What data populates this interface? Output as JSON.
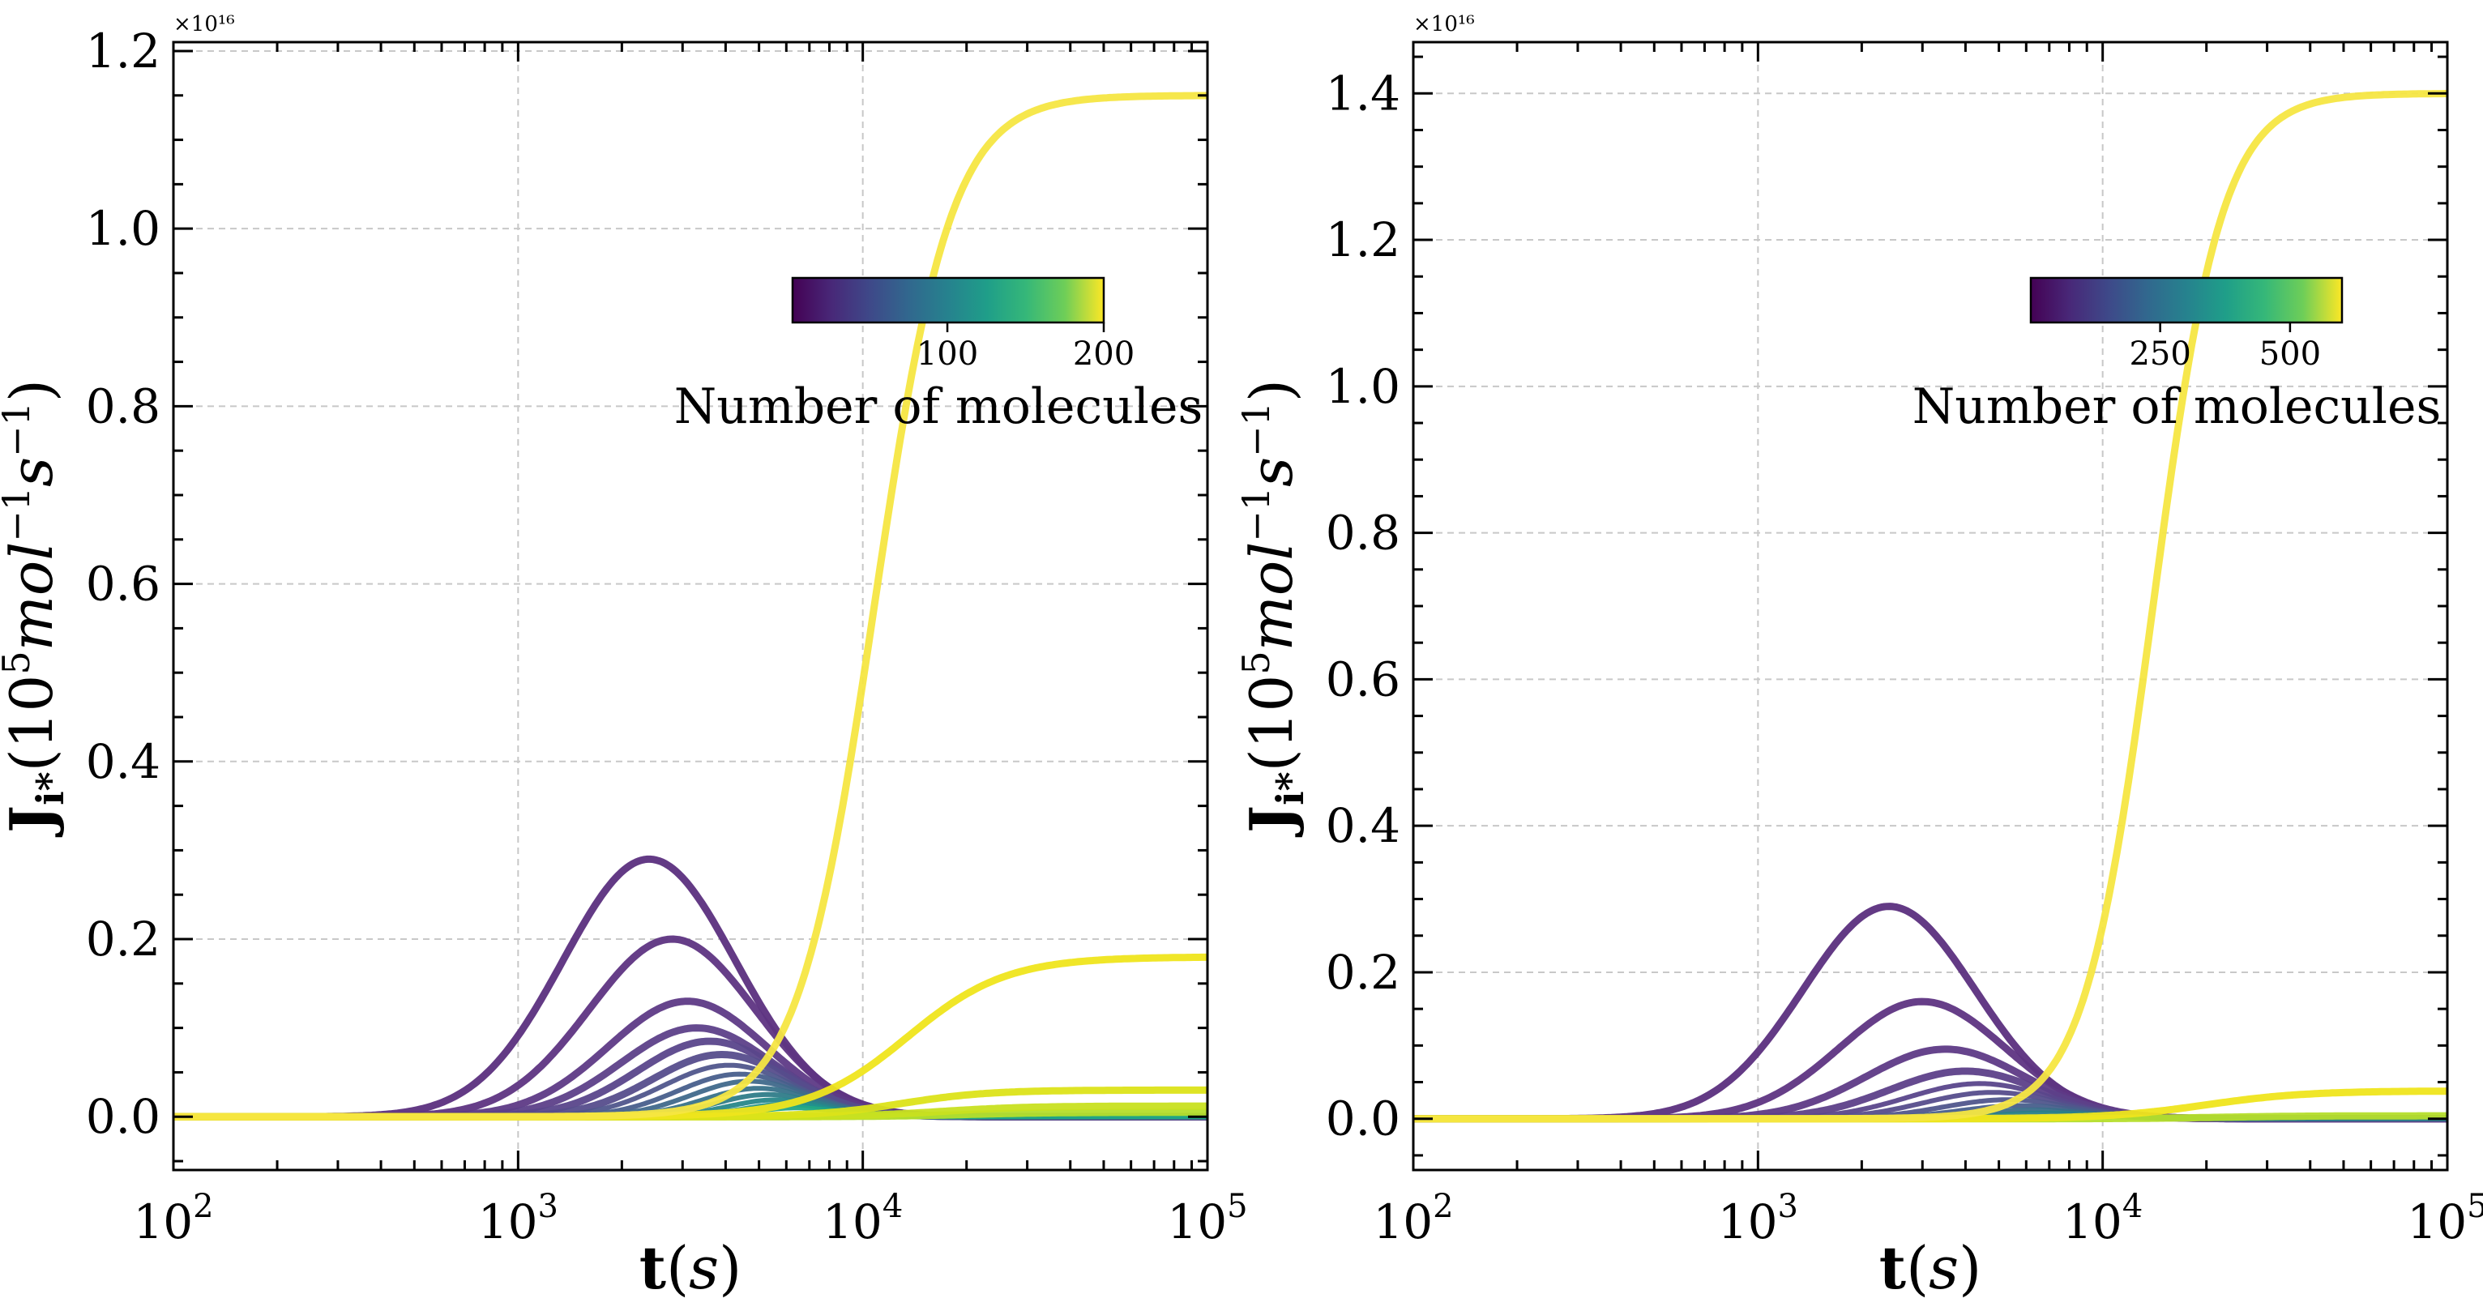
{
  "chart_data": [
    {
      "type": "line",
      "panel": "left",
      "xscale": "log",
      "xlim": [
        100,
        100000
      ],
      "ylim": [
        -0.06,
        1.21
      ],
      "y_scale_multiplier": "×10¹⁶",
      "grid": true,
      "xlabel": "t(s)",
      "ylabel": "J_i*(10^5 mol^-1 s^-1)",
      "x_tick_labels": [
        {
          "value": 100,
          "base": "10",
          "exp": "2"
        },
        {
          "value": 1000,
          "base": "10",
          "exp": "3"
        },
        {
          "value": 10000,
          "base": "10",
          "exp": "4"
        },
        {
          "value": 100000,
          "base": "10",
          "exp": "5"
        }
      ],
      "y_tick_labels": [
        {
          "value": 0.0,
          "label": "0.0"
        },
        {
          "value": 0.2,
          "label": "0.2"
        },
        {
          "value": 0.4,
          "label": "0.4"
        },
        {
          "value": 0.6,
          "label": "0.6"
        },
        {
          "value": 0.8,
          "label": "0.8"
        },
        {
          "value": 1.0,
          "label": "1.0"
        },
        {
          "value": 1.2,
          "label": "1.2"
        }
      ],
      "colorbar": {
        "colormap": "viridis",
        "range": [
          1,
          200
        ],
        "ticks": [
          100,
          200
        ],
        "tick_labels": [
          "100",
          "200"
        ],
        "label": "Number of molecules",
        "placement": "upper-right"
      },
      "series": [
        {
          "kind": "peak",
          "peak_x": 2400,
          "peak_y": 0.29,
          "width": 0.25,
          "color": "#5b2f7e"
        },
        {
          "kind": "peak",
          "peak_x": 2800,
          "peak_y": 0.2,
          "width": 0.24,
          "color": "#5e3482"
        },
        {
          "kind": "peak",
          "peak_x": 3100,
          "peak_y": 0.13,
          "width": 0.23,
          "color": "#5e3a86"
        },
        {
          "kind": "peak",
          "peak_x": 3300,
          "peak_y": 0.1,
          "width": 0.22,
          "color": "#5d4089"
        },
        {
          "kind": "peak",
          "peak_x": 3600,
          "peak_y": 0.085,
          "width": 0.21,
          "color": "#5a468b"
        },
        {
          "kind": "peak",
          "peak_x": 3900,
          "peak_y": 0.07,
          "width": 0.2,
          "color": "#564d8c"
        },
        {
          "kind": "peak",
          "peak_x": 4100,
          "peak_y": 0.058,
          "width": 0.19,
          "color": "#50568c"
        },
        {
          "kind": "peak",
          "peak_x": 4400,
          "peak_y": 0.048,
          "width": 0.18,
          "color": "#485f8c"
        },
        {
          "kind": "peak",
          "peak_x": 4700,
          "peak_y": 0.04,
          "width": 0.17,
          "color": "#40698b"
        },
        {
          "kind": "peak",
          "peak_x": 5000,
          "peak_y": 0.032,
          "width": 0.16,
          "color": "#38728a"
        },
        {
          "kind": "peak",
          "peak_x": 5300,
          "peak_y": 0.025,
          "width": 0.15,
          "color": "#2f7c89"
        },
        {
          "kind": "peak",
          "peak_x": 5600,
          "peak_y": 0.019,
          "width": 0.14,
          "color": "#27878a"
        },
        {
          "kind": "peak",
          "peak_x": 6000,
          "peak_y": 0.014,
          "width": 0.13,
          "color": "#21918c"
        },
        {
          "kind": "peak",
          "peak_x": 6400,
          "peak_y": 0.01,
          "width": 0.12,
          "color": "#21a685"
        },
        {
          "kind": "step",
          "mid_x": 20000,
          "plateau_y": 0.005,
          "steep": 8,
          "color": "#b5de2b"
        },
        {
          "kind": "step",
          "mid_x": 17000,
          "plateau_y": 0.012,
          "steep": 8,
          "color": "#c8e020"
        },
        {
          "kind": "step",
          "mid_x": 13000,
          "plateau_y": 0.03,
          "steep": 8,
          "color": "#dce319"
        },
        {
          "kind": "step",
          "mid_x": 13500,
          "plateau_y": 0.18,
          "steep": 7,
          "color": "#efe51c"
        },
        {
          "kind": "step",
          "mid_x": 10800,
          "plateau_y": 1.15,
          "steep": 9,
          "color": "#f6e642"
        }
      ]
    },
    {
      "type": "line",
      "panel": "right",
      "xscale": "log",
      "xlim": [
        100,
        100000
      ],
      "ylim": [
        -0.07,
        1.47
      ],
      "y_scale_multiplier": "×10¹⁶",
      "grid": true,
      "xlabel": "t(s)",
      "ylabel": "J_i*(10^5 mol^-1 s^-1)",
      "x_tick_labels": [
        {
          "value": 100,
          "base": "10",
          "exp": "2"
        },
        {
          "value": 1000,
          "base": "10",
          "exp": "3"
        },
        {
          "value": 10000,
          "base": "10",
          "exp": "4"
        },
        {
          "value": 100000,
          "base": "10",
          "exp": "5"
        }
      ],
      "y_tick_labels": [
        {
          "value": 0.0,
          "label": "0.0"
        },
        {
          "value": 0.2,
          "label": "0.2"
        },
        {
          "value": 0.4,
          "label": "0.4"
        },
        {
          "value": 0.6,
          "label": "0.6"
        },
        {
          "value": 0.8,
          "label": "0.8"
        },
        {
          "value": 1.0,
          "label": "1.0"
        },
        {
          "value": 1.2,
          "label": "1.2"
        },
        {
          "value": 1.4,
          "label": "1.4"
        }
      ],
      "colorbar": {
        "colormap": "viridis",
        "range": [
          1,
          600
        ],
        "ticks": [
          250,
          500
        ],
        "tick_labels": [
          "250",
          "500"
        ],
        "label": "Number of molecules",
        "placement": "upper-right"
      },
      "series": [
        {
          "kind": "peak",
          "peak_x": 2400,
          "peak_y": 0.29,
          "width": 0.25,
          "color": "#5b2f7e"
        },
        {
          "kind": "peak",
          "peak_x": 3000,
          "peak_y": 0.16,
          "width": 0.24,
          "color": "#5e3482"
        },
        {
          "kind": "peak",
          "peak_x": 3500,
          "peak_y": 0.095,
          "width": 0.23,
          "color": "#5e3a86"
        },
        {
          "kind": "peak",
          "peak_x": 4000,
          "peak_y": 0.065,
          "width": 0.22,
          "color": "#5d4089"
        },
        {
          "kind": "peak",
          "peak_x": 4400,
          "peak_y": 0.048,
          "width": 0.21,
          "color": "#5a468b"
        },
        {
          "kind": "peak",
          "peak_x": 4800,
          "peak_y": 0.036,
          "width": 0.2,
          "color": "#564d8c"
        },
        {
          "kind": "peak",
          "peak_x": 5300,
          "peak_y": 0.026,
          "width": 0.19,
          "color": "#50568c"
        },
        {
          "kind": "peak",
          "peak_x": 5800,
          "peak_y": 0.018,
          "width": 0.18,
          "color": "#485f8c"
        },
        {
          "kind": "peak",
          "peak_x": 6300,
          "peak_y": 0.012,
          "width": 0.17,
          "color": "#3a6e8a"
        },
        {
          "kind": "peak",
          "peak_x": 6900,
          "peak_y": 0.008,
          "width": 0.15,
          "color": "#2a8089"
        },
        {
          "kind": "step",
          "mid_x": 22000,
          "plateau_y": 0.004,
          "steep": 8,
          "color": "#b5de2b"
        },
        {
          "kind": "step",
          "mid_x": 20000,
          "plateau_y": 0.038,
          "steep": 7,
          "color": "#efe51c"
        },
        {
          "kind": "step",
          "mid_x": 14000,
          "plateau_y": 1.4,
          "steep": 10,
          "color": "#f6e642"
        }
      ]
    }
  ]
}
